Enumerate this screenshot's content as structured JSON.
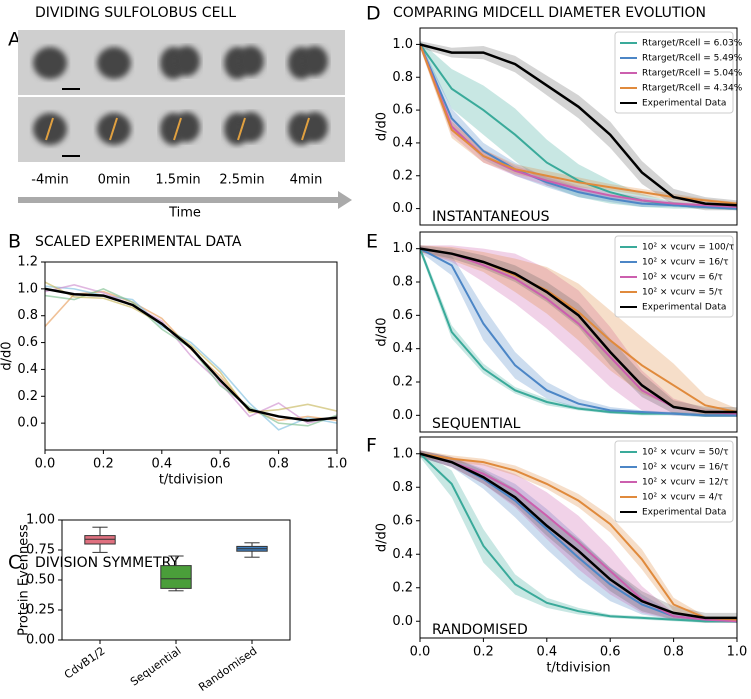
{
  "chart_data": [
    {
      "type": "image",
      "panel": "A",
      "title": "DIVIDING SULFOLOBUS CELL",
      "categories": [
        "-4min",
        "0min",
        "1.5min",
        "2.5min",
        "4min"
      ],
      "xlabel": "Time"
    },
    {
      "type": "line",
      "panel": "B",
      "title": "SCALED EXPERIMENTAL DATA",
      "xlabel": "t/tdivision",
      "ylabel": "d/d0",
      "x": [
        0,
        0.1,
        0.2,
        0.3,
        0.4,
        0.5,
        0.6,
        0.7,
        0.8,
        0.9,
        1.0
      ],
      "xlim": [
        0,
        1
      ],
      "ylim": [
        -0.2,
        1.2
      ],
      "xticks": [
        {
          "value": 0,
          "label": "0.0"
        },
        {
          "value": 0.2,
          "label": "0.2"
        },
        {
          "value": 0.4,
          "label": "0.4"
        },
        {
          "value": 0.6,
          "label": "0.6"
        },
        {
          "value": 0.8,
          "label": "0.8"
        },
        {
          "value": 1,
          "label": "1.0"
        }
      ],
      "yticks": [
        {
          "value": 0,
          "label": "0.0"
        },
        {
          "value": 0.2,
          "label": "0.2"
        },
        {
          "value": 0.4,
          "label": "0.4"
        },
        {
          "value": 0.6,
          "label": "0.6"
        },
        {
          "value": 0.8,
          "label": "0.8"
        },
        {
          "value": 1,
          "label": "1.0"
        },
        {
          "value": 1.2,
          "label": "1.2"
        }
      ],
      "series": [
        {
          "color": "#e8a060",
          "values": [
            0.72,
            0.96,
            0.98,
            0.9,
            0.78,
            0.55,
            0.35,
            0.1,
            0.02,
            0.05,
            0.02
          ]
        },
        {
          "color": "#7fc0e0",
          "values": [
            1.02,
            1.0,
            0.95,
            0.92,
            0.72,
            0.6,
            0.4,
            0.15,
            -0.05,
            0.04,
            0.0
          ]
        },
        {
          "color": "#d090d0",
          "values": [
            0.98,
            1.03,
            0.97,
            0.88,
            0.76,
            0.5,
            0.3,
            0.05,
            0.15,
            0.0,
            0.05
          ]
        },
        {
          "color": "#80c090",
          "values": [
            0.95,
            0.92,
            1.0,
            0.9,
            0.7,
            0.56,
            0.28,
            0.12,
            0.0,
            -0.02,
            0.06
          ]
        },
        {
          "color": "#c8b860",
          "values": [
            1.05,
            0.94,
            0.93,
            0.86,
            0.74,
            0.58,
            0.38,
            0.08,
            0.1,
            0.14,
            0.09
          ]
        },
        {
          "color": "#000000",
          "values": [
            1.0,
            0.96,
            0.95,
            0.88,
            0.74,
            0.56,
            0.32,
            0.1,
            0.05,
            0.02,
            0.04
          ]
        }
      ]
    },
    {
      "type": "box",
      "panel": "C",
      "title": "DIVISION SYMMETRY",
      "ylabel": "Protein Evenness",
      "categories": [
        "CdvB1/2",
        "Sequential",
        "Randomised"
      ],
      "ylim": [
        0,
        1
      ],
      "yticks": [
        {
          "value": 0,
          "label": "0.00"
        },
        {
          "value": 0.25,
          "label": "0.25"
        },
        {
          "value": 0.5,
          "label": "0.50"
        },
        {
          "value": 0.75,
          "label": "0.75"
        },
        {
          "value": 1,
          "label": "1.00"
        }
      ],
      "boxes": [
        {
          "color": "#e0707f",
          "low": 0.73,
          "q1": 0.8,
          "median": 0.84,
          "q3": 0.87,
          "high": 0.94
        },
        {
          "color": "#4a9e3a",
          "low": 0.41,
          "q1": 0.43,
          "median": 0.51,
          "q3": 0.62,
          "high": 0.7
        },
        {
          "color": "#3f7fc0",
          "low": 0.69,
          "q1": 0.74,
          "median": 0.76,
          "q3": 0.78,
          "high": 0.81
        }
      ]
    },
    {
      "type": "band",
      "panel": "D",
      "title": "COMPARING MIDCELL DIAMETER EVOLUTION",
      "annotation": "INSTANTANEOUS",
      "ylabel": "d/d0",
      "x": [
        0,
        0.1,
        0.2,
        0.3,
        0.4,
        0.5,
        0.6,
        0.7,
        0.8,
        0.9,
        1.0
      ],
      "xlim": [
        0,
        1
      ],
      "ylim": [
        -0.1,
        1.1
      ],
      "yticks": [
        {
          "value": 0,
          "label": "0.0"
        },
        {
          "value": 0.2,
          "label": "0.2"
        },
        {
          "value": 0.4,
          "label": "0.4"
        },
        {
          "value": 0.6,
          "label": "0.6"
        },
        {
          "value": 0.8,
          "label": "0.8"
        },
        {
          "value": 1,
          "label": "1.0"
        }
      ],
      "series": [
        {
          "name": "Rtarget/Rcell = 6.03%",
          "color": "#3aaa9a",
          "values": [
            1.0,
            0.73,
            0.6,
            0.45,
            0.28,
            0.17,
            0.1,
            0.05,
            0.02,
            0.01,
            0.0
          ],
          "errors": [
            0.02,
            0.12,
            0.15,
            0.16,
            0.14,
            0.1,
            0.07,
            0.04,
            0.02,
            0.01,
            0.01
          ]
        },
        {
          "name": "Rtarget/Rcell = 5.49%",
          "color": "#4c86c6",
          "values": [
            1.0,
            0.55,
            0.35,
            0.24,
            0.16,
            0.1,
            0.06,
            0.03,
            0.02,
            0.01,
            0.0
          ],
          "errors": [
            0.02,
            0.06,
            0.05,
            0.04,
            0.03,
            0.03,
            0.02,
            0.02,
            0.01,
            0.01,
            0.01
          ]
        },
        {
          "name": "Rtarget/Rcell = 5.04%",
          "color": "#cc5fae",
          "values": [
            1.0,
            0.5,
            0.32,
            0.23,
            0.17,
            0.12,
            0.08,
            0.05,
            0.03,
            0.02,
            0.01
          ],
          "errors": [
            0.02,
            0.05,
            0.04,
            0.03,
            0.03,
            0.02,
            0.02,
            0.02,
            0.01,
            0.01,
            0.01
          ]
        },
        {
          "name": "Rtarget/Rcell = 4.34%",
          "color": "#e08a3c",
          "values": [
            1.0,
            0.48,
            0.32,
            0.24,
            0.2,
            0.16,
            0.13,
            0.1,
            0.07,
            0.05,
            0.03
          ],
          "errors": [
            0.02,
            0.05,
            0.04,
            0.03,
            0.03,
            0.03,
            0.02,
            0.02,
            0.02,
            0.01,
            0.01
          ]
        },
        {
          "name": "Experimental Data",
          "color": "#000000",
          "values": [
            1.0,
            0.95,
            0.95,
            0.88,
            0.75,
            0.62,
            0.45,
            0.22,
            0.07,
            0.03,
            0.02
          ],
          "errors": [
            0.02,
            0.03,
            0.04,
            0.05,
            0.06,
            0.07,
            0.08,
            0.07,
            0.05,
            0.04,
            0.03
          ]
        }
      ]
    },
    {
      "type": "band",
      "panel": "E",
      "annotation": "SEQUENTIAL",
      "ylabel": "d/d0",
      "x": [
        0,
        0.1,
        0.2,
        0.3,
        0.4,
        0.5,
        0.6,
        0.7,
        0.8,
        0.9,
        1.0
      ],
      "xlim": [
        0,
        1
      ],
      "ylim": [
        -0.1,
        1.1
      ],
      "yticks": [
        {
          "value": 0,
          "label": "0.0"
        },
        {
          "value": 0.2,
          "label": "0.2"
        },
        {
          "value": 0.4,
          "label": "0.4"
        },
        {
          "value": 0.6,
          "label": "0.6"
        },
        {
          "value": 0.8,
          "label": "0.8"
        },
        {
          "value": 1,
          "label": "1.0"
        }
      ],
      "series": [
        {
          "name": "10² × vcurv = 100/τ",
          "color": "#3aaa9a",
          "values": [
            1.0,
            0.5,
            0.28,
            0.15,
            0.08,
            0.04,
            0.02,
            0.01,
            0.01,
            0.0,
            0.0
          ],
          "errors": [
            0.02,
            0.04,
            0.03,
            0.02,
            0.02,
            0.01,
            0.01,
            0.01,
            0.01,
            0.01,
            0.01
          ]
        },
        {
          "name": "10² × vcurv = 16/τ",
          "color": "#4c86c6",
          "values": [
            1.0,
            0.9,
            0.55,
            0.3,
            0.15,
            0.07,
            0.03,
            0.02,
            0.01,
            0.0,
            0.0
          ],
          "errors": [
            0.02,
            0.06,
            0.1,
            0.08,
            0.05,
            0.03,
            0.02,
            0.01,
            0.01,
            0.01,
            0.01
          ]
        },
        {
          "name": "10² × vcurv = 6/τ",
          "color": "#cc5fae",
          "values": [
            1.0,
            0.97,
            0.9,
            0.82,
            0.7,
            0.55,
            0.35,
            0.15,
            0.05,
            0.02,
            0.01
          ],
          "errors": [
            0.02,
            0.05,
            0.1,
            0.15,
            0.18,
            0.2,
            0.18,
            0.12,
            0.05,
            0.02,
            0.01
          ]
        },
        {
          "name": "10² × vcurv = 5/τ",
          "color": "#e08a3c",
          "values": [
            1.0,
            0.97,
            0.92,
            0.84,
            0.75,
            0.62,
            0.45,
            0.3,
            0.18,
            0.06,
            0.02
          ],
          "errors": [
            0.02,
            0.04,
            0.06,
            0.1,
            0.14,
            0.17,
            0.18,
            0.17,
            0.13,
            0.06,
            0.02
          ]
        },
        {
          "name": "Experimental Data",
          "color": "#000000",
          "values": [
            1.0,
            0.97,
            0.92,
            0.85,
            0.74,
            0.6,
            0.38,
            0.18,
            0.05,
            0.02,
            0.02
          ],
          "errors": [
            0.02,
            0.03,
            0.04,
            0.05,
            0.06,
            0.07,
            0.08,
            0.07,
            0.04,
            0.03,
            0.03
          ]
        }
      ]
    },
    {
      "type": "band",
      "panel": "F",
      "annotation": "RANDOMISED",
      "xlabel": "t/tdivision",
      "ylabel": "d/d0",
      "x": [
        0,
        0.1,
        0.2,
        0.3,
        0.4,
        0.5,
        0.6,
        0.7,
        0.8,
        0.9,
        1.0
      ],
      "xlim": [
        0,
        1
      ],
      "ylim": [
        -0.1,
        1.1
      ],
      "xticks": [
        {
          "value": 0,
          "label": "0.0"
        },
        {
          "value": 0.2,
          "label": "0.2"
        },
        {
          "value": 0.4,
          "label": "0.4"
        },
        {
          "value": 0.6,
          "label": "0.6"
        },
        {
          "value": 0.8,
          "label": "0.8"
        },
        {
          "value": 1,
          "label": "1.0"
        }
      ],
      "yticks": [
        {
          "value": 0,
          "label": "0.0"
        },
        {
          "value": 0.2,
          "label": "0.2"
        },
        {
          "value": 0.4,
          "label": "0.4"
        },
        {
          "value": 0.6,
          "label": "0.6"
        },
        {
          "value": 0.8,
          "label": "0.8"
        },
        {
          "value": 1,
          "label": "1.0"
        }
      ],
      "series": [
        {
          "name": "10² × vcurv = 50/τ",
          "color": "#3aaa9a",
          "values": [
            1.0,
            0.82,
            0.45,
            0.22,
            0.11,
            0.06,
            0.03,
            0.02,
            0.01,
            0.0,
            0.0
          ],
          "errors": [
            0.02,
            0.08,
            0.1,
            0.06,
            0.03,
            0.02,
            0.01,
            0.01,
            0.01,
            0.01,
            0.01
          ]
        },
        {
          "name": "10² × vcurv = 16/τ",
          "color": "#4c86c6",
          "values": [
            1.0,
            0.95,
            0.85,
            0.72,
            0.55,
            0.38,
            0.22,
            0.1,
            0.03,
            0.01,
            0.0
          ],
          "errors": [
            0.02,
            0.03,
            0.06,
            0.1,
            0.12,
            0.12,
            0.1,
            0.06,
            0.02,
            0.01,
            0.01
          ]
        },
        {
          "name": "10² × vcurv = 12/τ",
          "color": "#cc5fae",
          "values": [
            1.0,
            0.95,
            0.88,
            0.78,
            0.63,
            0.47,
            0.3,
            0.13,
            0.03,
            0.01,
            0.0
          ],
          "errors": [
            0.02,
            0.03,
            0.06,
            0.1,
            0.14,
            0.16,
            0.14,
            0.08,
            0.02,
            0.01,
            0.01
          ]
        },
        {
          "name": "10² × vcurv = 4/τ",
          "color": "#e08a3c",
          "values": [
            1.0,
            0.97,
            0.95,
            0.9,
            0.82,
            0.72,
            0.58,
            0.37,
            0.1,
            0.02,
            0.01
          ],
          "errors": [
            0.02,
            0.02,
            0.02,
            0.03,
            0.03,
            0.04,
            0.05,
            0.06,
            0.04,
            0.01,
            0.01
          ]
        },
        {
          "name": "Experimental Data",
          "color": "#000000",
          "values": [
            1.0,
            0.95,
            0.86,
            0.74,
            0.57,
            0.42,
            0.25,
            0.12,
            0.05,
            0.02,
            0.02
          ],
          "errors": [
            0.02,
            0.03,
            0.04,
            0.05,
            0.06,
            0.07,
            0.07,
            0.06,
            0.04,
            0.03,
            0.03
          ]
        }
      ]
    }
  ]
}
